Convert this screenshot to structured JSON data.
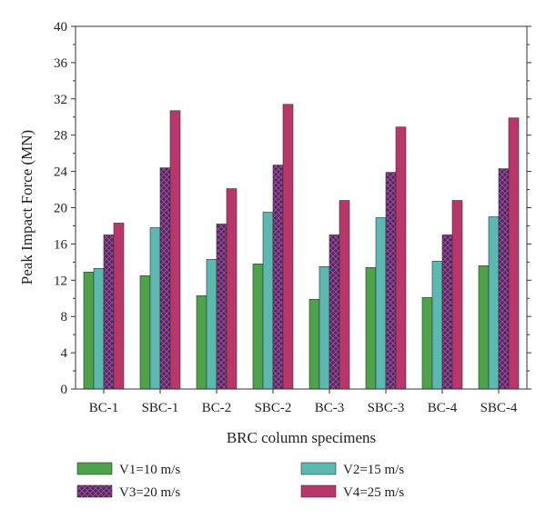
{
  "chart_data": {
    "type": "bar",
    "title": "",
    "xlabel": "BRC column specimens",
    "ylabel": "Peak Impact Force (MN)",
    "ylim": [
      0,
      40
    ],
    "yticks": [
      0,
      4,
      8,
      12,
      16,
      20,
      24,
      28,
      32,
      36,
      40
    ],
    "grid": false,
    "legend_position": "bottom",
    "categories": [
      "BC-1",
      "SBC-1",
      "BC-2",
      "SBC-2",
      "BC-3",
      "SBC-3",
      "BC-4",
      "SBC-4"
    ],
    "series": [
      {
        "name": "V1=10 m/s",
        "color": "#4ea24a",
        "pattern": "solid",
        "values": [
          12.9,
          12.5,
          10.3,
          13.8,
          9.9,
          13.4,
          10.1,
          13.6
        ]
      },
      {
        "name": "V2=15 m/s",
        "color": "#5bb9b2",
        "pattern": "solid",
        "values": [
          13.3,
          17.8,
          14.3,
          19.5,
          13.5,
          18.9,
          14.1,
          19.0
        ]
      },
      {
        "name": "V3=20 m/s",
        "color": "#2f2f8f",
        "pattern": "crosshatch",
        "pattern_color": "#c4405a",
        "values": [
          17.0,
          24.4,
          18.2,
          24.7,
          17.0,
          23.9,
          17.0,
          24.3
        ]
      },
      {
        "name": "V4=25 m/s",
        "color": "#b8366a",
        "pattern": "solid",
        "values": [
          18.3,
          30.7,
          22.1,
          31.4,
          20.8,
          28.9,
          20.8,
          29.9
        ]
      }
    ]
  }
}
